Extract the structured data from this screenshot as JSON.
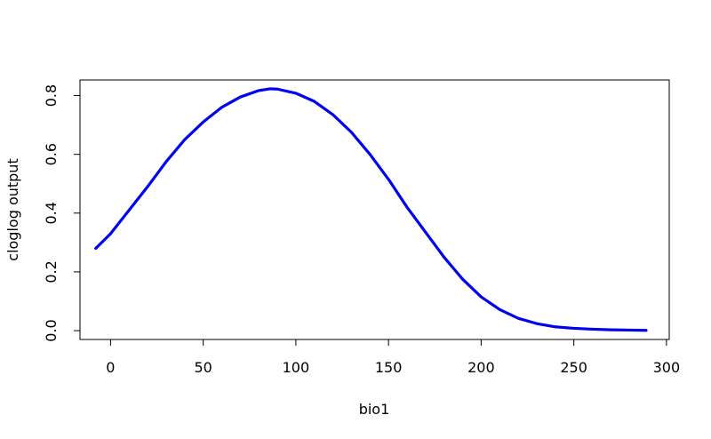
{
  "chart_data": {
    "type": "line",
    "title": "",
    "xlabel": "bio1",
    "ylabel": "cloglog output",
    "xlim": [
      -16.5,
      301.5
    ],
    "ylim": [
      -0.03,
      0.853
    ],
    "x_ticks": [
      0,
      50,
      100,
      150,
      200,
      250,
      300
    ],
    "x_tick_labels": [
      "0",
      "50",
      "100",
      "150",
      "200",
      "250",
      "300"
    ],
    "y_ticks": [
      0.0,
      0.2,
      0.4,
      0.6,
      0.8
    ],
    "y_tick_labels": [
      "0.0",
      "0.2",
      "0.4",
      "0.6",
      "0.8"
    ],
    "grid": false,
    "legend": "none",
    "series": [
      {
        "color": "#0000ee",
        "x": [
          -8,
          0,
          10,
          20,
          30,
          40,
          50,
          60,
          70,
          80,
          86,
          90,
          100,
          110,
          120,
          130,
          140,
          150,
          160,
          170,
          180,
          190,
          200,
          210,
          220,
          230,
          240,
          250,
          260,
          270,
          280,
          289
        ],
        "y": [
          0.28,
          0.33,
          0.41,
          0.49,
          0.575,
          0.65,
          0.71,
          0.76,
          0.795,
          0.817,
          0.823,
          0.822,
          0.808,
          0.78,
          0.735,
          0.675,
          0.6,
          0.515,
          0.42,
          0.335,
          0.25,
          0.175,
          0.115,
          0.072,
          0.042,
          0.024,
          0.013,
          0.008,
          0.005,
          0.003,
          0.002,
          0.001
        ]
      }
    ]
  }
}
